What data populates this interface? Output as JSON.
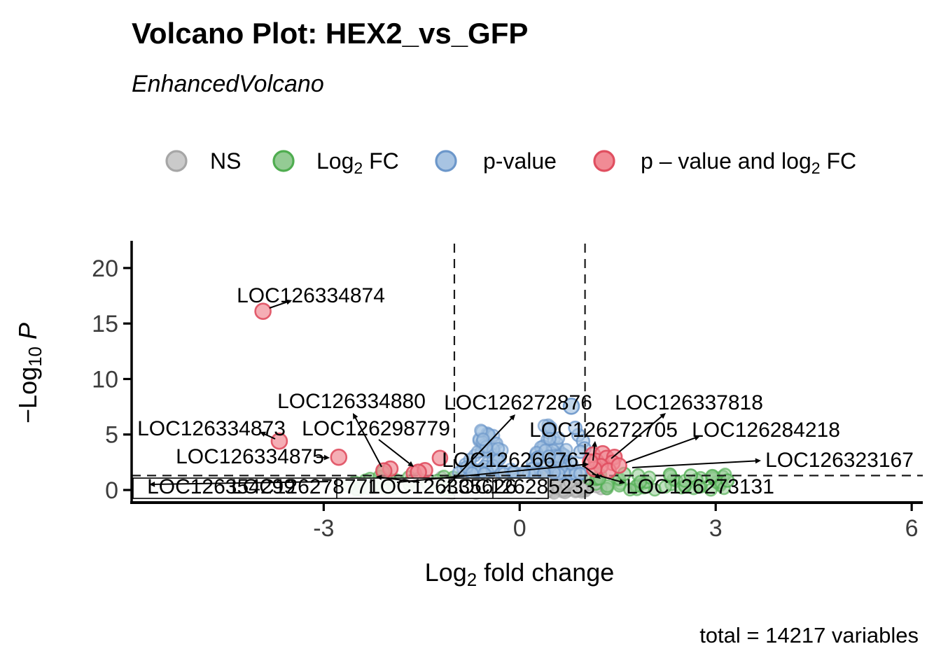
{
  "figure": {
    "title": "Volcano Plot: HEX2_vs_GFP",
    "subtitle": "EnhancedVolcano",
    "caption": "total = 14217 variables"
  },
  "legend": {
    "items": [
      {
        "key": "ns",
        "label": {
          "pre": "NS",
          "sub": "",
          "post": ""
        },
        "fill": "#CACACA",
        "stroke": "#A6A6A6"
      },
      {
        "key": "fc",
        "label": {
          "pre": "Log",
          "sub": "2",
          "post": " FC"
        },
        "fill": "#94CB94",
        "stroke": "#4FAD50"
      },
      {
        "key": "p",
        "label": {
          "pre": "p-value",
          "sub": "",
          "post": ""
        },
        "fill": "#A8C4E2",
        "stroke": "#6C97CA"
      },
      {
        "key": "both",
        "label": {
          "pre": "p – value and log",
          "sub": "2",
          "post": " FC"
        },
        "fill": "#F18B95",
        "stroke": "#E04F60"
      }
    ]
  },
  "chart_data": {
    "type": "scatter",
    "title": "Volcano Plot: HEX2_vs_GFP",
    "subtitle": "EnhancedVolcano",
    "xlabel": {
      "pre": "Log",
      "sub": "2",
      "post": " fold change",
      "italic": ""
    },
    "ylabel": {
      "pre": "−Log",
      "sub": "10",
      "post": " ",
      "italic": "P"
    },
    "xlim": [
      -5.94,
      6.17
    ],
    "ylim": [
      -1.135,
      22.2
    ],
    "x_ticks": [
      -3,
      0,
      3,
      6
    ],
    "x_tick_labels": [
      "-3",
      "0",
      "3",
      "6"
    ],
    "y_ticks": [
      0,
      5,
      10,
      15,
      20
    ],
    "y_tick_labels": [
      "0",
      "5",
      "10",
      "15",
      "20"
    ],
    "threshold_lines": {
      "h_y": 1.301,
      "v_x": [
        -1,
        1
      ]
    },
    "total_label": "total = 14217 variables",
    "gene_labels": [
      {
        "gene": "LOC126334874",
        "x": -3.93,
        "y": 16.1,
        "category": "both",
        "draw_point": true
      },
      {
        "gene": "LOC126334873",
        "x": -3.68,
        "y": 4.4,
        "category": "both",
        "draw_point": true
      },
      {
        "gene": "LOC126334875",
        "x": -2.77,
        "y": 2.95,
        "category": "both",
        "draw_point": true
      },
      {
        "gene": "LOC126334880",
        "x": -2.08,
        "y": 1.72,
        "category": "both",
        "draw_point": true
      },
      {
        "gene": "LOC126298779",
        "x": -1.55,
        "y": 1.6,
        "category": "both",
        "draw_point": true
      },
      {
        "gene": "LOC126272876",
        "x": 0.79,
        "y": 7.55,
        "category": "p",
        "draw_point": true
      },
      {
        "gene": "LOC126337818",
        "x": 1.45,
        "y": 2.98,
        "category": "both",
        "draw_point": false
      },
      {
        "gene": "LOC126272705",
        "x": 1.14,
        "y": 1.95,
        "category": "both",
        "draw_point": false
      },
      {
        "gene": "LOC126284218",
        "x": 1.33,
        "y": 2.55,
        "category": "both",
        "draw_point": false
      },
      {
        "gene": "LOC126323167",
        "x": 1.52,
        "y": 2.2,
        "category": "both",
        "draw_point": false
      },
      {
        "gene": "LOC126266767",
        "x": 1.08,
        "y": 2.6,
        "category": "both",
        "draw_point": false
      },
      {
        "gene": "LOC126354299",
        "x": -2.4,
        "y": 0.9,
        "category": "fc",
        "draw_point": false
      },
      {
        "gene": "LOC126278771",
        "x": -2.12,
        "y": 1.15,
        "category": "fc",
        "draw_point": false
      },
      {
        "gene": "LOC126335626",
        "x": -1.3,
        "y": 1.2,
        "category": "fc",
        "draw_point": false
      },
      {
        "gene": "LOC126285233",
        "x": 1.2,
        "y": 2.3,
        "category": "both",
        "draw_point": false
      },
      {
        "gene": "LOC126273131",
        "x": 1.3,
        "y": 1.5,
        "category": "fc",
        "draw_point": false
      }
    ],
    "points": [
      {
        "x": 1.12,
        "y": 3.18,
        "category": "both",
        "r": 10.5
      },
      {
        "x": 1.27,
        "y": 3.3,
        "category": "both",
        "r": 10.5
      },
      {
        "x": 1.17,
        "y": 2.62,
        "category": "both",
        "r": 10.5
      },
      {
        "x": 1.33,
        "y": 2.88,
        "category": "both",
        "r": 10.5
      },
      {
        "x": 1.45,
        "y": 2.98,
        "category": "both",
        "r": 10.5
      },
      {
        "x": 1.42,
        "y": 2.45,
        "category": "both",
        "r": 10.5
      },
      {
        "x": 1.24,
        "y": 2.15,
        "category": "both",
        "r": 10.5
      },
      {
        "x": 1.14,
        "y": 1.9,
        "category": "both",
        "r": 10.5
      },
      {
        "x": 1.36,
        "y": 1.75,
        "category": "both",
        "r": 10.5
      },
      {
        "x": 1.52,
        "y": 2.2,
        "category": "both",
        "r": 10.5
      },
      {
        "x": 1.08,
        "y": 2.55,
        "category": "both",
        "r": 10.5
      },
      {
        "x": -1.62,
        "y": 1.5,
        "category": "both",
        "r": 10.5
      },
      {
        "x": -1.98,
        "y": 1.92,
        "category": "both",
        "r": 10.5
      },
      {
        "x": -1.45,
        "y": 1.78,
        "category": "both",
        "r": 10.5
      },
      {
        "x": -1.22,
        "y": 2.88,
        "category": "both",
        "r": 10.5
      },
      {
        "x": 0.9,
        "y": 4.95,
        "category": "p",
        "r": 9
      },
      {
        "x": 0.97,
        "y": 4.4,
        "category": "p",
        "r": 9
      },
      {
        "x": 0.99,
        "y": 3.75,
        "category": "p",
        "r": 9
      },
      {
        "x": 0.93,
        "y": 3.45,
        "category": "p",
        "r": 9
      },
      {
        "x": 0.85,
        "y": 5.6,
        "category": "p",
        "r": 9
      },
      {
        "x": -2.09,
        "y": 1.62,
        "category": "fc",
        "r": 9
      },
      {
        "x": 1.6,
        "y": 1.45,
        "category": "fc",
        "r": 9
      },
      {
        "x": 2.3,
        "y": 1.38,
        "category": "fc",
        "r": 9
      },
      {
        "x": 2.62,
        "y": 1.3,
        "category": "fc",
        "r": 9
      },
      {
        "x": 2.95,
        "y": 1.25,
        "category": "fc",
        "r": 9
      },
      {
        "x": 3.18,
        "y": 0.85,
        "category": "fc",
        "r": 9
      },
      {
        "x": -2.62,
        "y": 0.4,
        "category": "fc",
        "r": 9
      }
    ],
    "clusters": [
      {
        "category": "ns",
        "n": 260,
        "shape": "band",
        "ydist": "tri",
        "x": [
          -1.05,
          1.05
        ],
        "y": [
          -0.35,
          1.42
        ],
        "seed": 11,
        "r": 8
      },
      {
        "category": "ns",
        "n": 90,
        "shape": "band",
        "ydist": "uniform",
        "x": [
          -1.28,
          1.33
        ],
        "y": [
          -0.25,
          1.25
        ],
        "seed": 12,
        "r": 8
      },
      {
        "category": "fc",
        "n": 27,
        "shape": "band",
        "ydist": "uniform",
        "x": [
          -2.55,
          -1.02
        ],
        "y": [
          0.0,
          1.35
        ],
        "seed": 13,
        "r": 8.5
      },
      {
        "category": "fc",
        "n": 10,
        "shape": "band",
        "ydist": "uniform",
        "x": [
          -1.28,
          -1.0
        ],
        "y": [
          0.0,
          1.3
        ],
        "seed": 14,
        "r": 8.5
      },
      {
        "category": "fc",
        "n": 46,
        "shape": "band",
        "ydist": "uniform",
        "x": [
          1.02,
          3.2
        ],
        "y": [
          0.0,
          1.42
        ],
        "seed": 15,
        "r": 8.5
      },
      {
        "category": "p",
        "n": 55,
        "shape": "hump",
        "cx": -0.5,
        "half": 0.52,
        "ybase": 1.45,
        "ypeak": 5.6,
        "seed": 16,
        "r": 8.5
      },
      {
        "category": "p",
        "n": 72,
        "shape": "hump",
        "cx": 0.5,
        "half": 0.52,
        "ybase": 1.45,
        "ypeak": 6.3,
        "seed": 17,
        "r": 8.5
      }
    ]
  }
}
